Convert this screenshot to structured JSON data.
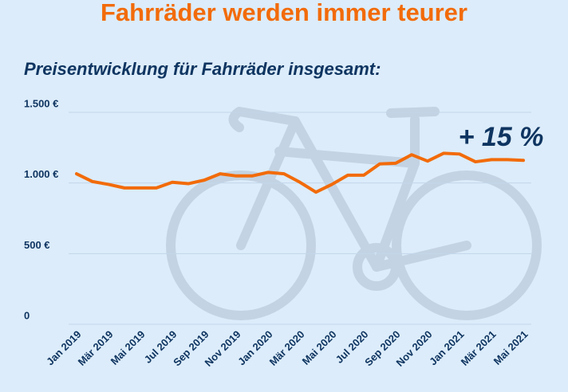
{
  "chart_data": {
    "type": "line",
    "title": "Fahrräder werden immer teurer",
    "subtitle": "Preisentwicklung für Fahrräder insgesamt:",
    "annotation": "+ 15 %",
    "categories": [
      "Jan 2019",
      null,
      "Mär 2019",
      null,
      "Mai 2019",
      null,
      "Jul 2019",
      null,
      "Sep 2019",
      null,
      "Nov 2019",
      null,
      "Jan 2020",
      null,
      "Mär 2020",
      null,
      "Mai 2020",
      null,
      "Jul 2020",
      null,
      "Sep 2020",
      null,
      "Nov 2020",
      null,
      "Jan 2021",
      null,
      "Mär 2021",
      null,
      "Mai 2021"
    ],
    "series": [
      {
        "name": "Preisentwicklung",
        "color": "#f26b0a",
        "values": [
          1065,
          1010,
          990,
          965,
          965,
          965,
          1005,
          995,
          1020,
          1065,
          1050,
          1050,
          1075,
          1065,
          1005,
          935,
          990,
          1055,
          1055,
          1135,
          1140,
          1200,
          1155,
          1210,
          1205,
          1150,
          1165,
          1165,
          1160
        ]
      }
    ],
    "ylim": [
      0,
      1500
    ],
    "yticks": [
      0,
      {
        "value": 500,
        "label": "500 €"
      },
      {
        "value": 1000,
        "label": "1.000 €"
      },
      {
        "value": 1500,
        "label": "1.500 €"
      }
    ],
    "grid": true
  }
}
